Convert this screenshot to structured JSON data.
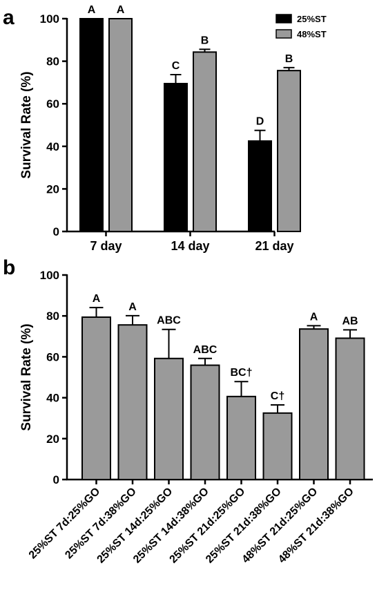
{
  "chart_data": [
    {
      "panel": "a",
      "type": "bar",
      "ylabel": "Survival Rate (%)",
      "ylim": [
        0,
        100
      ],
      "yticks": [
        0,
        20,
        40,
        60,
        80,
        100
      ],
      "categories": [
        "7 day",
        "14 day",
        "21 day"
      ],
      "series": [
        {
          "name": "25%ST",
          "color": "#000000",
          "values": [
            100,
            69.5,
            42.5
          ],
          "errors": [
            0,
            4.2,
            5
          ],
          "labels": [
            "A",
            "C",
            "D"
          ]
        },
        {
          "name": "48%ST",
          "color": "#9a9a9a",
          "values": [
            100,
            84.3,
            75.6
          ],
          "errors": [
            0,
            1.3,
            1.4
          ],
          "labels": [
            "A",
            "B",
            "B"
          ]
        }
      ],
      "legend": "top-right",
      "grid": false
    },
    {
      "panel": "b",
      "type": "bar",
      "ylabel": "Survival Rate (%)",
      "ylim": [
        0,
        100
      ],
      "yticks": [
        0,
        20,
        40,
        60,
        80,
        100
      ],
      "categories": [
        "25%ST 7d:25%GO",
        "25%ST 7d:38%GO",
        "25%ST 14d:25%GO",
        "25%ST 14d:38%GO",
        "25%ST 21d:25%GO",
        "25%ST 21d:38%GO",
        "48%ST 21d:25%GO",
        "48%ST 21d:38%GO"
      ],
      "series": [
        {
          "color": "#9a9a9a",
          "values": [
            79.4,
            75.6,
            59.2,
            55.9,
            40.6,
            32.5,
            73.6,
            69.1
          ],
          "errors": [
            4.7,
            4.5,
            14.2,
            3.3,
            7.3,
            4,
            1.6,
            4.1
          ],
          "labels": [
            "A",
            "A",
            "ABC",
            "ABC",
            "BC†",
            "C†",
            "A",
            "AB"
          ]
        }
      ],
      "grid": false
    }
  ]
}
